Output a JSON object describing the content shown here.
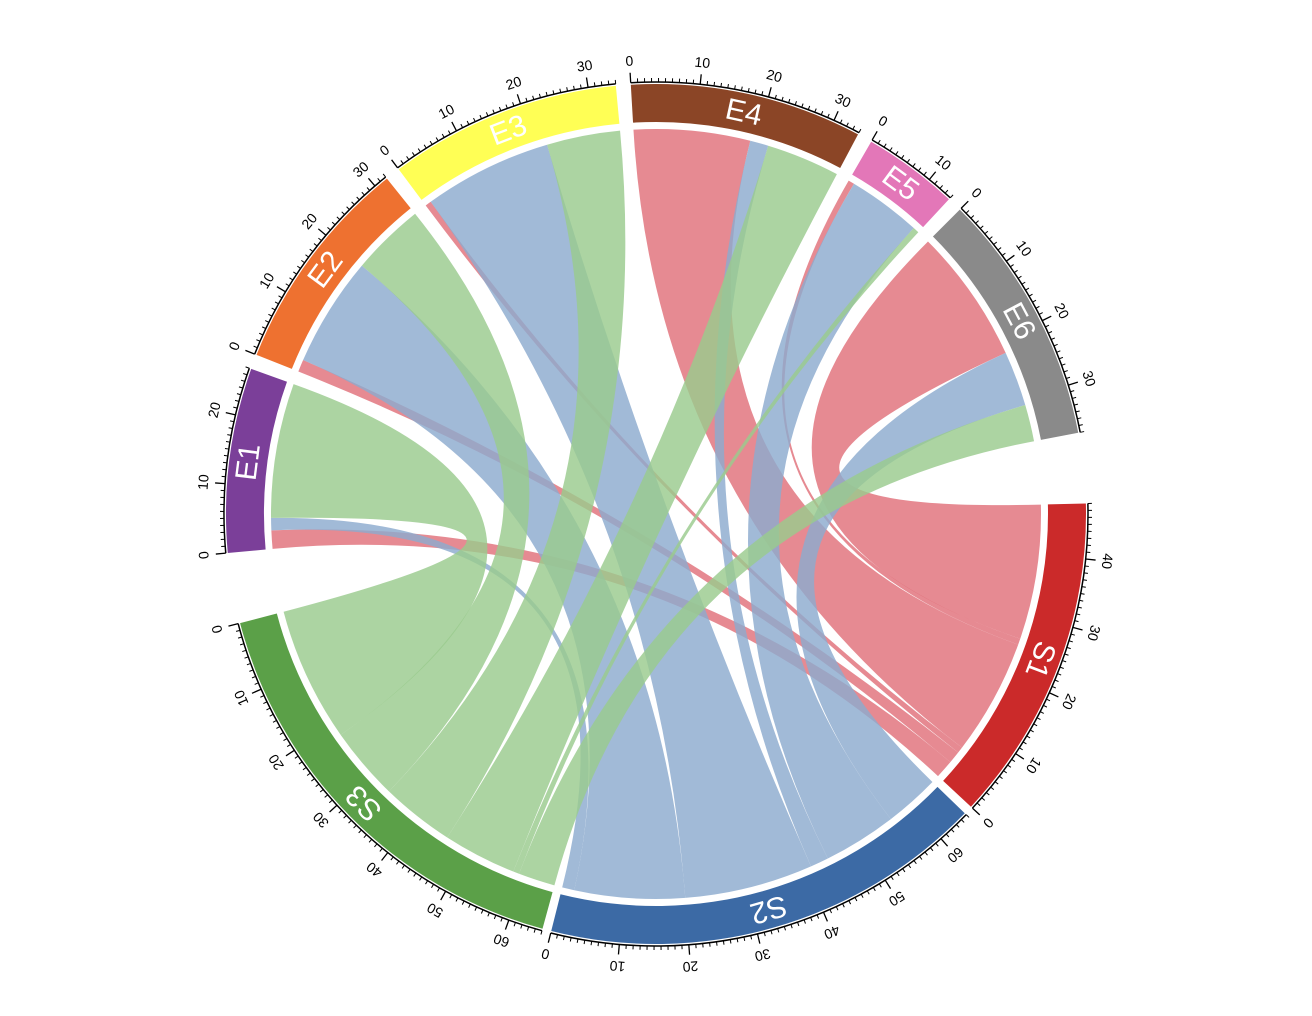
{
  "chart_data": {
    "type": "chord",
    "title": "",
    "sectors": [
      {
        "name": "E1",
        "total": 27,
        "color": "#7B3F99",
        "ticks": [
          0,
          10,
          20
        ]
      },
      {
        "name": "E2",
        "total": 32,
        "color": "#EE7130",
        "ticks": [
          0,
          10,
          20,
          30
        ]
      },
      {
        "name": "E3",
        "total": 34,
        "color": "#FFFF55",
        "ticks": [
          0,
          10,
          20,
          30
        ]
      },
      {
        "name": "E4",
        "total": 34,
        "color": "#8B4526",
        "ticks": [
          0,
          10,
          20,
          30
        ]
      },
      {
        "name": "E5",
        "total": 14,
        "color": "#E377B8",
        "ticks": [
          0,
          10
        ]
      },
      {
        "name": "E6",
        "total": 37,
        "color": "#8A8A8A",
        "ticks": [
          0,
          10,
          20,
          30
        ]
      },
      {
        "name": "S1",
        "total": 48,
        "color": "#CB2A2A",
        "ticks": [
          0,
          10,
          20,
          30,
          40
        ]
      },
      {
        "name": "S2",
        "total": 65,
        "color": "#3C6AA5",
        "ticks": [
          0,
          10,
          20,
          30,
          40,
          50,
          60
        ]
      },
      {
        "name": "S3",
        "total": 65,
        "color": "#5BA048",
        "ticks": [
          0,
          10,
          20,
          30,
          40,
          50,
          60
        ]
      }
    ],
    "source_colors": {
      "S1": "#E0707A",
      "S2": "#8CABCE",
      "S3": "#9ACB8E"
    },
    "links": [
      {
        "from": "S1",
        "to": "E1",
        "value": 3
      },
      {
        "from": "S2",
        "to": "E1",
        "value": 2
      },
      {
        "from": "S3",
        "to": "E1",
        "value": 22
      },
      {
        "from": "S1",
        "to": "E2",
        "value": 2
      },
      {
        "from": "S2",
        "to": "E2",
        "value": 18
      },
      {
        "from": "S3",
        "to": "E2",
        "value": 12
      },
      {
        "from": "S1",
        "to": "E3",
        "value": 1
      },
      {
        "from": "S2",
        "to": "E3",
        "value": 21
      },
      {
        "from": "S3",
        "to": "E3",
        "value": 12
      },
      {
        "from": "S1",
        "to": "E4",
        "value": 19
      },
      {
        "from": "S2",
        "to": "E4",
        "value": 3
      },
      {
        "from": "S3",
        "to": "E4",
        "value": 12
      },
      {
        "from": "S1",
        "to": "E5",
        "value": 1
      },
      {
        "from": "S2",
        "to": "E5",
        "value": 12
      },
      {
        "from": "S3",
        "to": "E5",
        "value": 1
      },
      {
        "from": "S1",
        "to": "E6",
        "value": 22
      },
      {
        "from": "S2",
        "to": "E6",
        "value": 9
      },
      {
        "from": "S3",
        "to": "E6",
        "value": 6
      }
    ]
  }
}
